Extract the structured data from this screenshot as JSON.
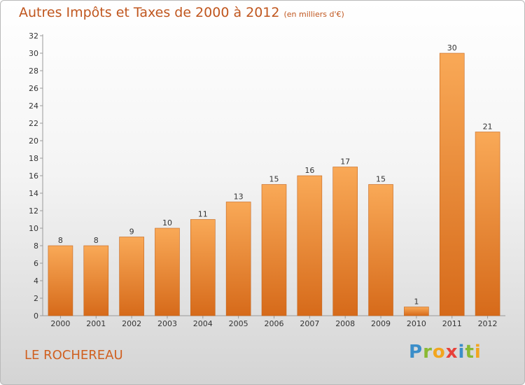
{
  "header": {
    "title": "Autres Impôts et Taxes de 2000 à 2012",
    "unit": "(en milliers d'€)"
  },
  "footer": {
    "commune": "LE ROCHEREAU",
    "logo_letters": [
      "P",
      "r",
      "o",
      "x",
      "i",
      "t",
      "i"
    ],
    "logo_colors": [
      "#3b8ec9",
      "#8ab933",
      "#f2a51e",
      "#e8413a",
      "#3b8ec9",
      "#8ab933",
      "#f2a51e"
    ]
  },
  "colors": {
    "bar_light": "#f9a957",
    "bar_dark": "#d66a1a",
    "text_accent": "#c0561e"
  },
  "chart_data": {
    "type": "bar",
    "categories": [
      "2000",
      "2001",
      "2002",
      "2003",
      "2004",
      "2005",
      "2006",
      "2007",
      "2008",
      "2009",
      "2010",
      "2011",
      "2012"
    ],
    "values": [
      8,
      8,
      9,
      10,
      11,
      13,
      15,
      16,
      17,
      15,
      1,
      30,
      21
    ],
    "data_labels": [
      "8",
      "8",
      "9",
      "10",
      "11",
      "13",
      "15",
      "16",
      "17",
      "15",
      "1",
      "30",
      "21"
    ],
    "ylim": [
      0,
      32
    ],
    "yticks": [
      0,
      2,
      4,
      6,
      8,
      10,
      12,
      14,
      16,
      18,
      20,
      22,
      24,
      26,
      28,
      30,
      32
    ],
    "ytick_labels": [
      "0",
      "2",
      "4",
      "6",
      "8",
      "10",
      "12",
      "14",
      "16",
      "18",
      "20",
      "22",
      "24",
      "26",
      "28",
      "30",
      "32"
    ],
    "grid": false,
    "legend": "none"
  }
}
